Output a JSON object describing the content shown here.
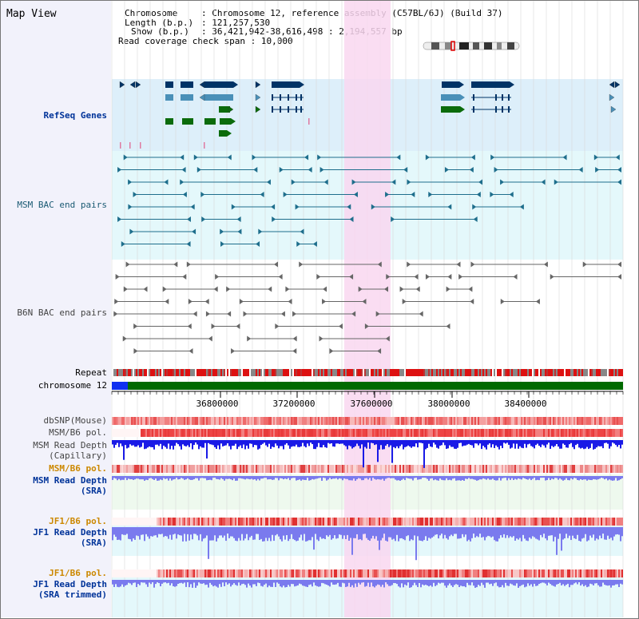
{
  "view_title": "Map View",
  "info": {
    "chromosome_key": "Chromosome",
    "chromosome_val": "Chromosome 12, reference assembly (C57BL/6J) (Build 37)",
    "length_key": "Length (b.p.)",
    "length_val": "121,257,530",
    "show_key": "Show (b.p.)",
    "show_val": "36,421,942-38,616,498 : 2,194,557 bp",
    "coverage_key": "Read coverage check span",
    "coverage_val": "10,000"
  },
  "tracks": {
    "refseq": "RefSeq Genes",
    "msm_bac": "MSM BAC end pairs",
    "b6n_bac": "B6N BAC end pairs",
    "repeat": "Repeat",
    "chromosome": "chromosome 12",
    "dbsnp": "dbSNP(Mouse)",
    "msm_b6_pol_1": "MSM/B6 pol.",
    "msm_read_depth_cap_1": "MSM Read Depth",
    "msm_read_depth_cap_2": "(Capillary)",
    "msm_b6_pol_2": "MSM/B6 pol.",
    "msm_read_depth_sra_1": "MSM Read Depth",
    "msm_read_depth_sra_2": "(SRA)",
    "jf1_b6_pol_1": "JF1/B6 pol.",
    "jf1_read_depth_1": "JF1 Read Depth",
    "jf1_read_depth_2": "(SRA)",
    "jf1_b6_pol_2": "JF1/B6 pol.",
    "jf1_read_depth_trim_1": "JF1 Read Depth",
    "jf1_read_depth_trim_2": "(SRA trimmed)"
  },
  "ruler_ticks": [
    "36800000",
    "37200000",
    "37600000",
    "38000000",
    "38400000"
  ],
  "colors": {
    "refseq_bg": "#ddeffa",
    "msm_bg": "#e4f8fb",
    "highlight": "#f9d7f0",
    "gene_dark": "#003366",
    "gene_mid": "#4a90b8",
    "gene_green": "#0b6b0b",
    "bac_msm": "#1e6e8c",
    "bac_b6n": "#666666",
    "depth_blue": "#1a1ae6",
    "depth_light": "#7a7aee",
    "label_blue": "#003399",
    "label_orange": "#cc8800",
    "label_teal": "#1a5a73",
    "label_gray": "#444444"
  }
}
